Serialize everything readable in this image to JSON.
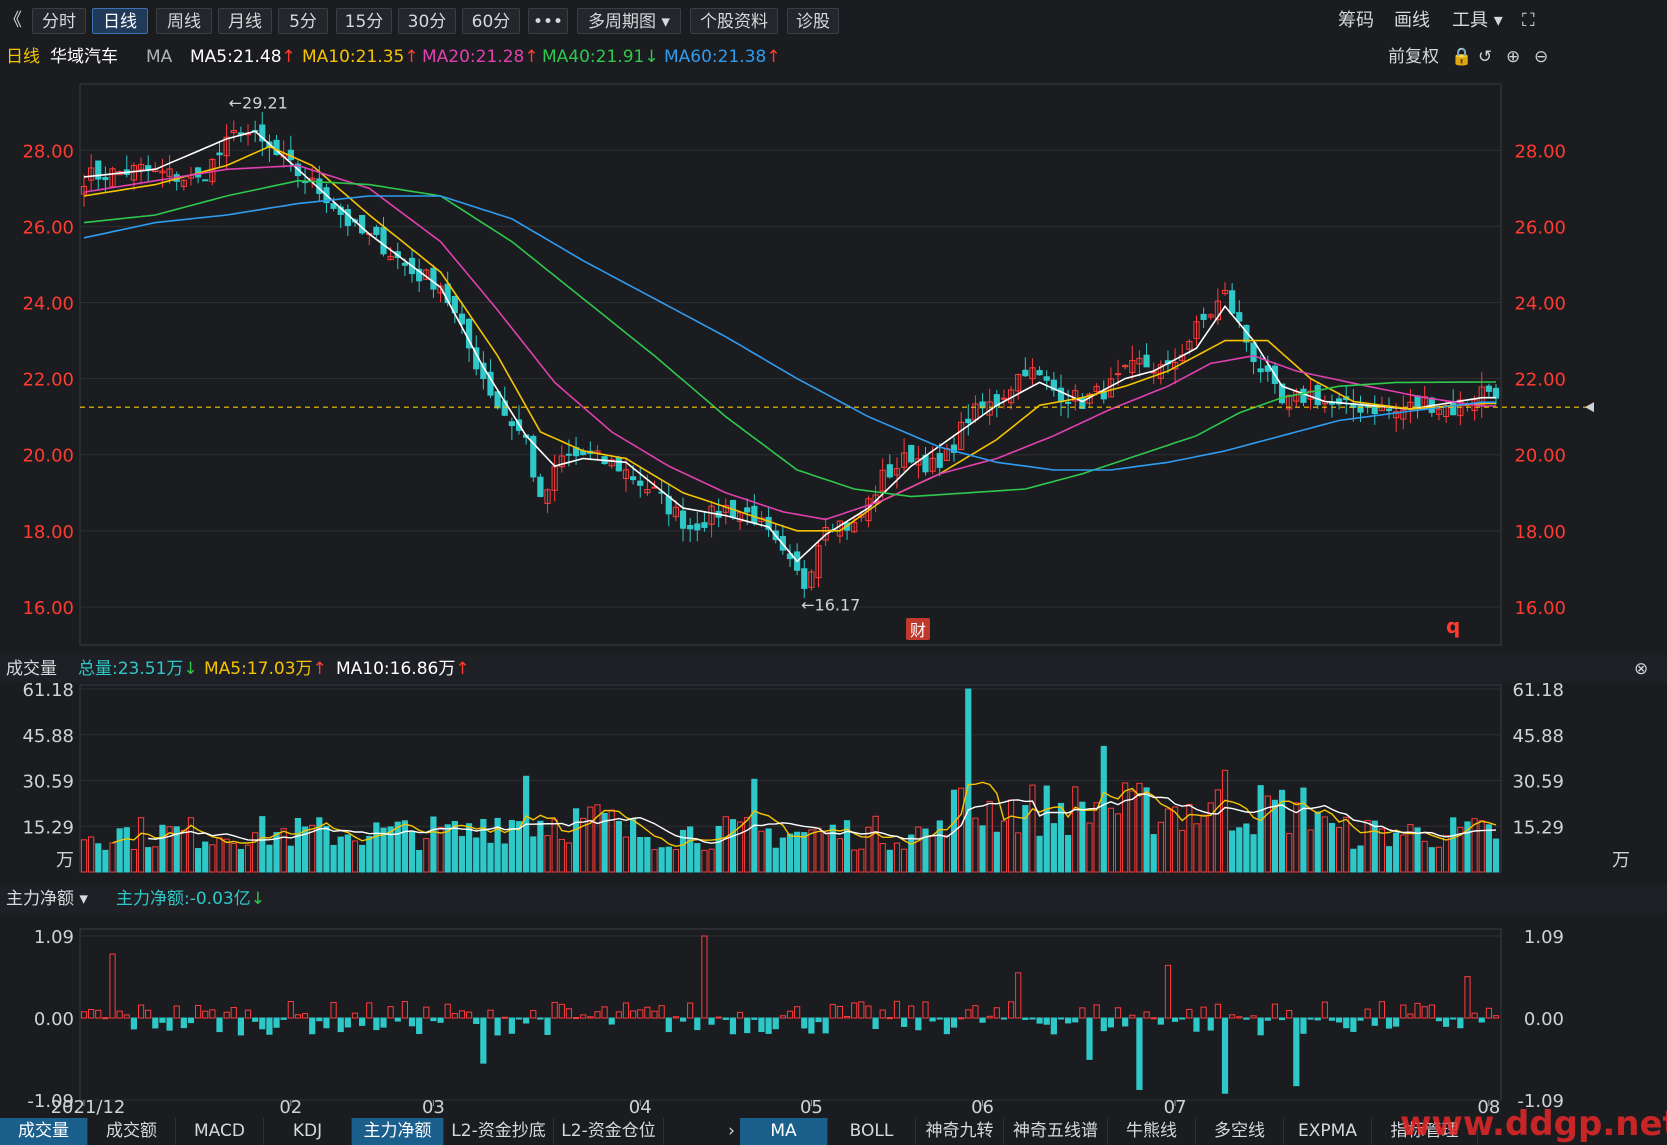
{
  "toolbar": {
    "back_icon": "double-chevron-left-icon",
    "back_glyph": "《",
    "tabs": [
      {
        "label": "分时",
        "active": false
      },
      {
        "label": "日线",
        "active": true
      },
      {
        "label": "周线",
        "active": false
      },
      {
        "label": "月线",
        "active": false
      },
      {
        "label": "5分",
        "active": false
      },
      {
        "label": "15分",
        "active": false
      },
      {
        "label": "30分",
        "active": false
      },
      {
        "label": "60分",
        "active": false
      },
      {
        "label": "•••",
        "active": false
      },
      {
        "label": "多周期图 ▾",
        "active": false
      },
      {
        "label": "个股资料",
        "active": false
      },
      {
        "label": "诊股",
        "active": false
      }
    ],
    "right_items": [
      "筹码",
      "画线",
      "工具 ▾"
    ]
  },
  "header": {
    "period": "日线",
    "stock_name": "华域汽车",
    "indicator": "MA",
    "ma_labels": [
      {
        "text": "MA5:21.48",
        "color": "#ffffff",
        "arrow": "↑",
        "arrow_color": "#ff3b30"
      },
      {
        "text": "MA10:21.35",
        "color": "#f5c400",
        "arrow": "↑",
        "arrow_color": "#ff3b30"
      },
      {
        "text": "MA20:21.28",
        "color": "#e040b0",
        "arrow": "↑",
        "arrow_color": "#ff3b30"
      },
      {
        "text": "MA40:21.91",
        "color": "#2ec84c",
        "arrow": "↓",
        "arrow_color": "#2ec84c"
      },
      {
        "text": "MA60:21.38",
        "color": "#2e9cf0",
        "arrow": "↑",
        "arrow_color": "#ff3b30"
      }
    ],
    "adjust": "前复权"
  },
  "volume_header": {
    "title": "成交量",
    "total": {
      "text": "总量:23.51万",
      "arrow": "↓"
    },
    "ma5": {
      "text": "MA5:17.03万",
      "arrow": "↑"
    },
    "ma10": {
      "text": "MA10:16.86万",
      "arrow": "↑"
    }
  },
  "flow_header": {
    "title": "主力净额 ▾",
    "value": {
      "text": "主力净额:-0.03亿",
      "arrow": "↓"
    }
  },
  "bottom_tabs_left": [
    "成交量",
    "成交额",
    "MACD",
    "KDJ",
    "主力净额",
    "L2-资金抄底",
    "L2-资金仓位"
  ],
  "bottom_tabs_left_active": [
    0,
    4
  ],
  "bottom_more": "›",
  "bottom_tabs_right": [
    "MA",
    "BOLL",
    "神奇九转",
    "神奇五线谱",
    "牛熊线",
    "多空线",
    "EXPMA",
    "指标管理"
  ],
  "bottom_tabs_right_active": 0,
  "watermark": "www.ddgp.net",
  "chart_data": {
    "type": "candlestick",
    "price_axis": {
      "ticks": [
        "28.00",
        "26.00",
        "24.00",
        "22.00",
        "20.00",
        "18.00",
        "16.00"
      ],
      "range": [
        15.0,
        29.9
      ]
    },
    "annotations": {
      "high": "29.21",
      "low": "16.17",
      "fin_marker": "财",
      "q_marker": "q"
    },
    "current_price_line": 21.25,
    "x_ticks": [
      "2021/12",
      "02",
      "03",
      "04",
      "05",
      "06",
      "07",
      "08"
    ],
    "close_keypoints": [
      [
        0,
        27.3
      ],
      [
        8,
        27.5
      ],
      [
        16,
        27.2
      ],
      [
        22,
        28.6
      ],
      [
        26,
        28.0
      ],
      [
        30,
        27.4
      ],
      [
        34,
        26.8
      ],
      [
        38,
        25.9
      ],
      [
        42,
        25.5
      ],
      [
        46,
        24.8
      ],
      [
        50,
        24.5
      ],
      [
        54,
        22.8
      ],
      [
        58,
        21.3
      ],
      [
        62,
        20.4
      ],
      [
        64,
        18.7
      ],
      [
        67,
        19.9
      ],
      [
        70,
        20.0
      ],
      [
        75,
        19.7
      ],
      [
        80,
        19.0
      ],
      [
        85,
        18.1
      ],
      [
        90,
        18.6
      ],
      [
        94,
        18.4
      ],
      [
        98,
        17.3
      ],
      [
        101,
        16.6
      ],
      [
        104,
        18.3
      ],
      [
        108,
        18.1
      ],
      [
        112,
        19.4
      ],
      [
        116,
        20.0
      ],
      [
        120,
        19.6
      ],
      [
        124,
        21.0
      ],
      [
        128,
        21.4
      ],
      [
        132,
        22.3
      ],
      [
        136,
        21.7
      ],
      [
        140,
        21.4
      ],
      [
        144,
        21.8
      ],
      [
        148,
        22.4
      ],
      [
        152,
        22.2
      ],
      [
        156,
        23.3
      ],
      [
        160,
        24.2
      ],
      [
        164,
        22.6
      ],
      [
        168,
        21.3
      ],
      [
        172,
        21.6
      ],
      [
        176,
        21.2
      ],
      [
        180,
        21.3
      ],
      [
        184,
        21.1
      ],
      [
        188,
        21.4
      ],
      [
        192,
        21.2
      ],
      [
        196,
        21.7
      ]
    ],
    "moving_averages": [
      {
        "name": "MA5",
        "color": "#ffffff",
        "keypoints": [
          [
            0,
            27.3
          ],
          [
            10,
            27.5
          ],
          [
            20,
            28.3
          ],
          [
            24,
            28.5
          ],
          [
            30,
            27.5
          ],
          [
            40,
            25.8
          ],
          [
            50,
            24.4
          ],
          [
            56,
            22.3
          ],
          [
            62,
            20.5
          ],
          [
            66,
            19.7
          ],
          [
            70,
            19.9
          ],
          [
            76,
            19.8
          ],
          [
            84,
            18.6
          ],
          [
            90,
            18.4
          ],
          [
            96,
            18.1
          ],
          [
            100,
            17.2
          ],
          [
            104,
            17.9
          ],
          [
            110,
            18.6
          ],
          [
            116,
            19.7
          ],
          [
            122,
            20.5
          ],
          [
            128,
            21.3
          ],
          [
            134,
            21.9
          ],
          [
            140,
            21.4
          ],
          [
            146,
            22.0
          ],
          [
            150,
            22.2
          ],
          [
            156,
            22.8
          ],
          [
            160,
            23.9
          ],
          [
            164,
            23.0
          ],
          [
            168,
            21.8
          ],
          [
            174,
            21.4
          ],
          [
            180,
            21.3
          ],
          [
            186,
            21.2
          ],
          [
            196,
            21.5
          ]
        ]
      },
      {
        "name": "MA10",
        "color": "#f5c400",
        "keypoints": [
          [
            0,
            26.8
          ],
          [
            10,
            27.1
          ],
          [
            20,
            27.6
          ],
          [
            26,
            28.1
          ],
          [
            32,
            27.6
          ],
          [
            40,
            26.3
          ],
          [
            50,
            24.8
          ],
          [
            58,
            22.6
          ],
          [
            64,
            20.6
          ],
          [
            70,
            20.1
          ],
          [
            76,
            19.9
          ],
          [
            84,
            19.0
          ],
          [
            92,
            18.5
          ],
          [
            100,
            18.0
          ],
          [
            106,
            18.0
          ],
          [
            112,
            18.8
          ],
          [
            120,
            19.5
          ],
          [
            128,
            20.4
          ],
          [
            134,
            21.3
          ],
          [
            140,
            21.5
          ],
          [
            146,
            21.8
          ],
          [
            152,
            22.2
          ],
          [
            160,
            23.0
          ],
          [
            166,
            23.0
          ],
          [
            172,
            22.0
          ],
          [
            178,
            21.4
          ],
          [
            186,
            21.2
          ],
          [
            196,
            21.35
          ]
        ]
      },
      {
        "name": "MA20",
        "color": "#e040b0",
        "keypoints": [
          [
            0,
            26.9
          ],
          [
            10,
            27.2
          ],
          [
            20,
            27.5
          ],
          [
            30,
            27.6
          ],
          [
            40,
            27.0
          ],
          [
            50,
            25.6
          ],
          [
            58,
            23.8
          ],
          [
            66,
            21.9
          ],
          [
            74,
            20.6
          ],
          [
            82,
            19.7
          ],
          [
            90,
            19.0
          ],
          [
            98,
            18.5
          ],
          [
            104,
            18.3
          ],
          [
            112,
            18.8
          ],
          [
            120,
            19.5
          ],
          [
            128,
            19.9
          ],
          [
            136,
            20.5
          ],
          [
            144,
            21.2
          ],
          [
            152,
            21.8
          ],
          [
            158,
            22.4
          ],
          [
            164,
            22.6
          ],
          [
            170,
            22.2
          ],
          [
            180,
            21.8
          ],
          [
            188,
            21.5
          ],
          [
            196,
            21.28
          ]
        ]
      },
      {
        "name": "MA40",
        "color": "#2ec84c",
        "keypoints": [
          [
            0,
            26.1
          ],
          [
            10,
            26.3
          ],
          [
            20,
            26.8
          ],
          [
            30,
            27.2
          ],
          [
            40,
            27.1
          ],
          [
            50,
            26.8
          ],
          [
            60,
            25.6
          ],
          [
            70,
            24.1
          ],
          [
            80,
            22.6
          ],
          [
            90,
            21.0
          ],
          [
            100,
            19.6
          ],
          [
            108,
            19.1
          ],
          [
            116,
            18.9
          ],
          [
            124,
            19.0
          ],
          [
            132,
            19.1
          ],
          [
            140,
            19.5
          ],
          [
            148,
            20.0
          ],
          [
            156,
            20.5
          ],
          [
            162,
            21.1
          ],
          [
            168,
            21.5
          ],
          [
            176,
            21.8
          ],
          [
            184,
            21.9
          ],
          [
            196,
            21.91
          ]
        ]
      },
      {
        "name": "MA60",
        "color": "#2e9cf0",
        "keypoints": [
          [
            0,
            25.7
          ],
          [
            10,
            26.1
          ],
          [
            20,
            26.3
          ],
          [
            30,
            26.6
          ],
          [
            40,
            26.8
          ],
          [
            50,
            26.8
          ],
          [
            60,
            26.2
          ],
          [
            70,
            25.1
          ],
          [
            80,
            24.1
          ],
          [
            90,
            23.1
          ],
          [
            100,
            22.0
          ],
          [
            110,
            21.0
          ],
          [
            120,
            20.2
          ],
          [
            128,
            19.8
          ],
          [
            136,
            19.6
          ],
          [
            144,
            19.6
          ],
          [
            152,
            19.8
          ],
          [
            160,
            20.1
          ],
          [
            168,
            20.5
          ],
          [
            176,
            20.9
          ],
          [
            184,
            21.1
          ],
          [
            196,
            21.38
          ]
        ]
      }
    ],
    "volume_axis": {
      "ticks": [
        "61.18",
        "45.88",
        "30.59",
        "15.29"
      ],
      "unit": "万",
      "max": 61.18
    },
    "flow_axis": {
      "ticks": [
        "1.09",
        "0.00",
        "-1.09"
      ],
      "range": [
        -1.09,
        1.09
      ]
    }
  },
  "icons": [
    "lock-icon",
    "undo-icon",
    "zoom-in-icon",
    "zoom-out-icon",
    "fullscreen-icon",
    "close-icon"
  ]
}
